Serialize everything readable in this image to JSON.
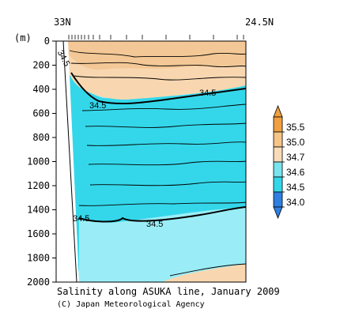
{
  "chart_data": {
    "type": "contour",
    "title": "Salinity along ASUKA line, January 2009",
    "credit": "(C) Japan Meteorological Agency",
    "x_start_label": "33N",
    "x_end_label": "24.5N",
    "ylabel": "(m)",
    "ylim": [
      2000,
      0
    ],
    "y_ticks": [
      0,
      200,
      400,
      600,
      800,
      1000,
      1200,
      1400,
      1600,
      1800,
      2000
    ],
    "y_tick_labels": [
      "0",
      "200",
      "400",
      "600",
      "800",
      "1000",
      "1200",
      "1400",
      "1600",
      "1800",
      "2000"
    ],
    "contour_labels": [
      "34.5",
      "34.5",
      "34.5",
      "34.5",
      "34.5"
    ],
    "colorbar": {
      "levels": [
        {
          "label": "35.5",
          "color": "#f0a040"
        },
        {
          "label": "35.0",
          "color": "#f5c486"
        },
        {
          "label": "34.7",
          "color": "#f8dcb8"
        },
        {
          "label": "34.6",
          "color": "#79e3ee"
        },
        {
          "label": "34.5",
          "color": "#34d7ea"
        },
        {
          "label": "34.0",
          "color": "#2f7fe0"
        }
      ],
      "low_color": "#2f7fe0",
      "high_color": "#f0a040"
    },
    "colors": {
      "salty_band": "#f8d7b0",
      "mid_water": "#34d7ea",
      "deep_water": "#9aedf6",
      "contour": "#000000"
    }
  }
}
